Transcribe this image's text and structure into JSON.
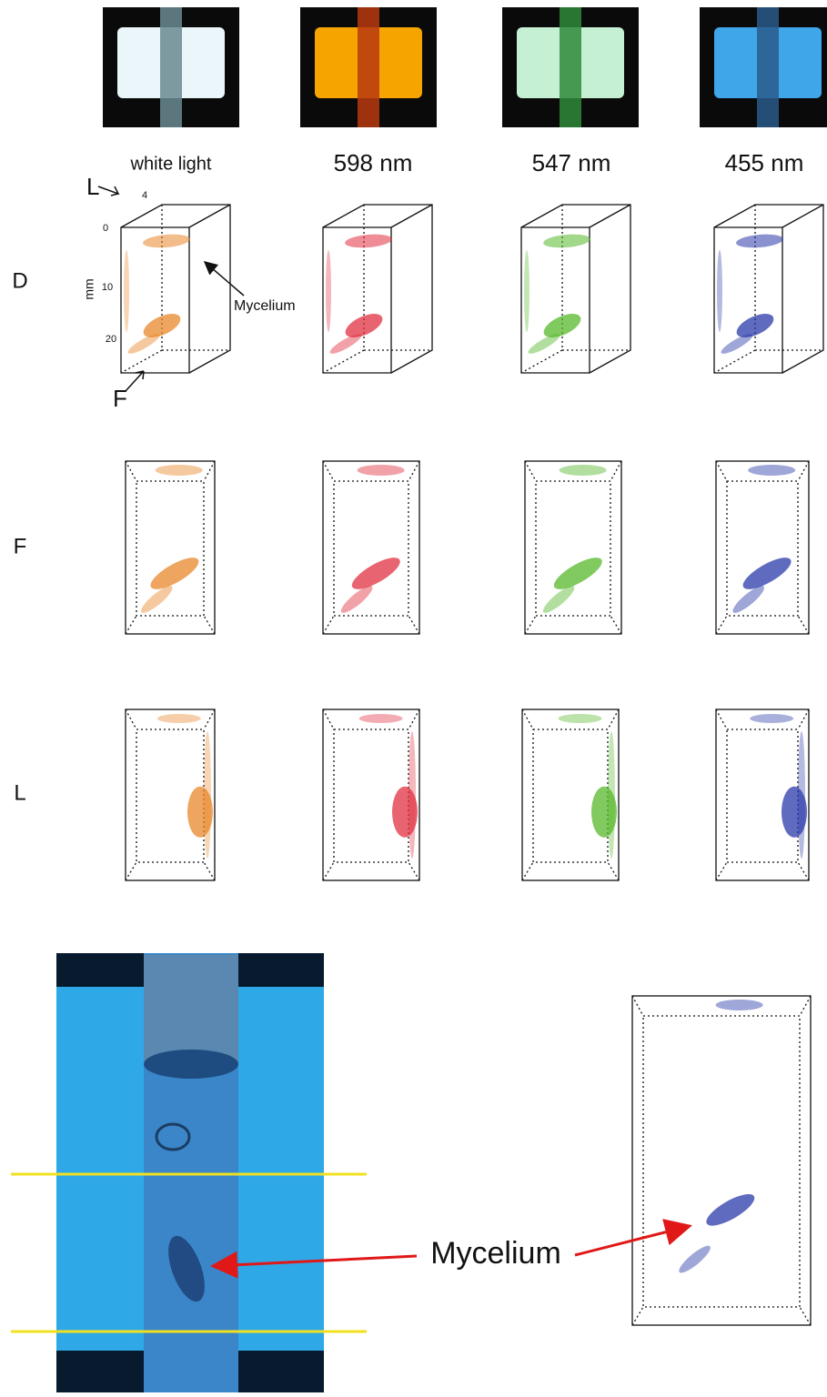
{
  "column_labels": [
    "white light",
    "598 nm",
    "547 nm",
    "455 nm"
  ],
  "row_labels": [
    "D",
    "F",
    "L"
  ],
  "panel_annotation": {
    "view_top": "L",
    "view_bottom": "F",
    "depth_ticks": [
      "4",
      "0",
      "10",
      "20"
    ],
    "unit": "mm",
    "pointer": "Mycelium"
  },
  "bottom_label": "Mycelium"
}
